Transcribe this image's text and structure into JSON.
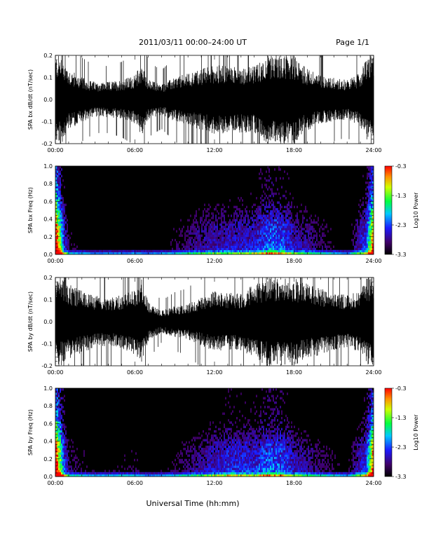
{
  "header": {
    "title": "2011/03/11   00:00–24:00 UT",
    "page": "Page 1/1"
  },
  "xlabel": "Universal Time (hh:mm)",
  "chart_data": [
    {
      "type": "line",
      "ylabel": "SPA bx dB/dt (nT/sec)",
      "xlim": [
        0,
        24
      ],
      "ylim": [
        -0.2,
        0.2
      ],
      "xticks": [
        "00:00",
        "06:00",
        "12:00",
        "18:00",
        "24:00"
      ],
      "yticks": [
        "-0.2",
        "-0.1",
        "0.0",
        "0.1",
        "0.2"
      ],
      "envelope_hours": [
        0,
        0.5,
        1,
        2,
        3,
        4,
        5,
        6,
        6.5,
        7,
        8,
        9,
        10,
        11,
        12,
        13,
        14,
        15,
        16,
        17,
        18,
        19,
        20,
        21,
        22,
        23,
        23.5,
        24
      ],
      "envelope_amplitude": [
        0.2,
        0.2,
        0.14,
        0.1,
        0.08,
        0.08,
        0.09,
        0.11,
        0.17,
        0.09,
        0.07,
        0.1,
        0.12,
        0.14,
        0.16,
        0.15,
        0.15,
        0.15,
        0.2,
        0.2,
        0.2,
        0.14,
        0.11,
        0.1,
        0.09,
        0.12,
        0.2,
        0.2
      ]
    },
    {
      "type": "heatmap",
      "ylabel": "SPA bx Freq (Hz)",
      "xlim": [
        0,
        24
      ],
      "ylim": [
        0,
        1
      ],
      "xticks": [
        "00:00",
        "06:00",
        "12:00",
        "18:00",
        "24:00"
      ],
      "yticks": [
        "0.0",
        "0.2",
        "0.4",
        "0.6",
        "0.8",
        "1.0"
      ],
      "colorbar": {
        "label": "Log10 Power",
        "ticks": [
          "-0.3",
          "-1.3",
          "-2.3",
          "-3.3"
        ],
        "range": [
          -3.3,
          -0.3
        ]
      },
      "activity_hours": [
        0,
        0.5,
        1,
        3,
        6,
        7,
        9,
        11,
        13,
        15,
        16,
        17,
        18,
        20,
        22,
        23.5,
        24
      ],
      "activity_level": [
        0.9,
        0.7,
        0.3,
        0.2,
        0.25,
        0.2,
        0.3,
        0.45,
        0.5,
        0.55,
        0.75,
        0.7,
        0.5,
        0.35,
        0.2,
        0.7,
        0.9
      ]
    },
    {
      "type": "line",
      "ylabel": "SPA by dB/dt (nT/sec)",
      "xlim": [
        0,
        24
      ],
      "ylim": [
        -0.2,
        0.2
      ],
      "xticks": [
        "00:00",
        "06:00",
        "12:00",
        "18:00",
        "24:00"
      ],
      "yticks": [
        "-0.2",
        "-0.1",
        "0.0",
        "0.1",
        "0.2"
      ],
      "envelope_hours": [
        0,
        0.5,
        1,
        2,
        3,
        4,
        5,
        6,
        6.5,
        7,
        8,
        9,
        10,
        11,
        12,
        13,
        14,
        15,
        16,
        17,
        18,
        19,
        20,
        21,
        22,
        23,
        23.5,
        24
      ],
      "envelope_amplitude": [
        0.2,
        0.2,
        0.17,
        0.14,
        0.12,
        0.11,
        0.12,
        0.15,
        0.2,
        0.09,
        0.05,
        0.07,
        0.08,
        0.11,
        0.14,
        0.13,
        0.13,
        0.17,
        0.2,
        0.2,
        0.2,
        0.17,
        0.15,
        0.13,
        0.12,
        0.14,
        0.2,
        0.2
      ]
    },
    {
      "type": "heatmap",
      "ylabel": "SPA by Freq (Hz)",
      "xlim": [
        0,
        24
      ],
      "ylim": [
        0,
        1
      ],
      "xticks": [
        "00:00",
        "06:00",
        "12:00",
        "18:00",
        "24:00"
      ],
      "yticks": [
        "0.0",
        "0.2",
        "0.4",
        "0.6",
        "0.8",
        "1.0"
      ],
      "colorbar": {
        "label": "Log10 Power",
        "ticks": [
          "-0.3",
          "-1.3",
          "-2.3",
          "-3.3"
        ],
        "range": [
          -3.3,
          -0.3
        ]
      },
      "activity_hours": [
        0,
        0.5,
        1,
        3,
        6,
        7,
        9,
        11,
        13,
        15,
        16,
        17,
        18,
        20,
        22,
        23.5,
        24
      ],
      "activity_level": [
        0.9,
        0.75,
        0.35,
        0.25,
        0.3,
        0.2,
        0.3,
        0.45,
        0.6,
        0.6,
        0.75,
        0.7,
        0.5,
        0.35,
        0.25,
        0.7,
        0.9
      ]
    }
  ]
}
